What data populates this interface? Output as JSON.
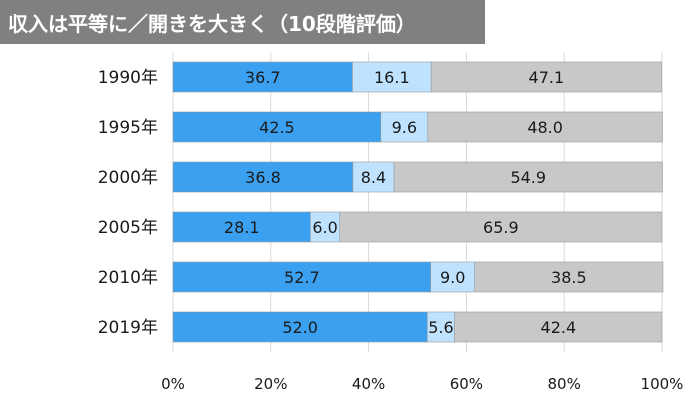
{
  "title": "収入は平等に／開きを大きく（10段階評価）",
  "colors": {
    "banner": "#808080",
    "banner_text": "#ffffff",
    "series": [
      "#3aa0ef",
      "#bfe3ff",
      "#c8c8c8"
    ],
    "grid": "#d9d9d9",
    "bar_border": "#9a9a9a"
  },
  "chart_data": {
    "type": "bar",
    "orientation": "horizontal",
    "stacked": true,
    "categories": [
      "1990年",
      "1995年",
      "2000年",
      "2005年",
      "2010年",
      "2019年"
    ],
    "series": [
      {
        "values": [
          36.7,
          42.5,
          36.8,
          28.1,
          52.7,
          52.0
        ]
      },
      {
        "values": [
          16.1,
          9.6,
          8.4,
          6.0,
          9.0,
          5.6
        ]
      },
      {
        "values": [
          47.1,
          48.0,
          54.9,
          65.9,
          38.5,
          42.4
        ]
      }
    ],
    "value_labels": [
      [
        "36.7",
        "42.5",
        "36.8",
        "28.1",
        "52.7",
        "52.0"
      ],
      [
        "16.1",
        "9.6",
        "8.4",
        "6.0",
        "9.0",
        "5.6"
      ],
      [
        "47.1",
        "48.0",
        "54.9",
        "65.9",
        "38.5",
        "42.4"
      ]
    ],
    "xlim": [
      0,
      100
    ],
    "x_ticks": [
      "0%",
      "20%",
      "40%",
      "60%",
      "80%",
      "100%"
    ],
    "grid": true,
    "legend": "none"
  }
}
